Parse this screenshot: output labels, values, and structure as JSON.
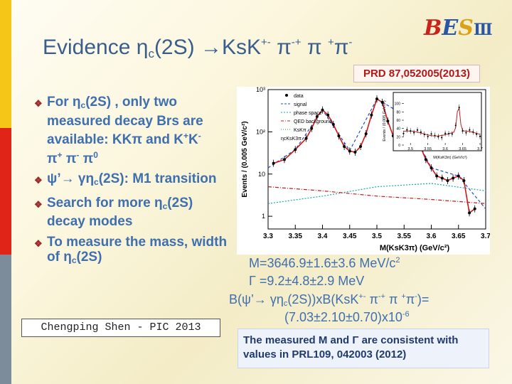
{
  "title": {
    "prefix": "Evidence ",
    "eta": "η",
    "eta_sub": "c",
    "state": "(2S) ",
    "arrow": "→",
    "ks": "KsK",
    "ks_sup": "+-",
    "pi1": " π",
    "pi1_sup": "-+",
    "pi2": " π ",
    "pi2_sup": "+",
    "pi3": "π",
    "pi3_sup": "-"
  },
  "logo": {
    "text1": "BES",
    "text2": "Ⅲ",
    "color_b": "#c8241c",
    "color_e": "#2a56a8",
    "color_s": "#d9a21a"
  },
  "reference": "PRD 87,052005(2013)",
  "bullets": [
    {
      "t1": "For ",
      "eta": "η",
      "sub": "c",
      "t2": "(2S) , only two measured decay Brs are available: KKπ and K",
      "sup1": "+",
      "t3": "K",
      "sup2": "-",
      "t4": " π",
      "sup3": "+",
      "t5": " π",
      "sup4": "-",
      "t6": " π",
      "sup5": "0"
    },
    {
      "t1": "ψ’→ γη",
      "sub": "c",
      "t2": "(2S): M1 transition"
    },
    {
      "t1": "Search for more η",
      "sub": "c",
      "t2": "(2S) decay modes"
    },
    {
      "t1": "To measure the mass, width of η",
      "sub": "c",
      "t2": "(2S)"
    }
  ],
  "bullet_marker": "❖",
  "results": {
    "mass": "M=3646.9±1.6±3.6 MeV/c",
    "mass_sup": "2",
    "gamma_sym": "Γ",
    "width": " =9.2±4.8±2.9 MeV",
    "br1": "B(ψ’→ γη",
    "br_sub": "c",
    "br2": "(2S))xB(KsK",
    "br_sup1": "+-",
    "br3": " π",
    "br_sup2": "-+",
    "br4": " π ",
    "br_sup3": "+",
    "br5": "π",
    "br_sup4": "-",
    "br6": ")=",
    "br_value": "(7.03±2.10±0.70)x10",
    "br_exp": "-6"
  },
  "footer": "Chengping Shen - PIC 2013",
  "note": {
    "line1a": "The measured M and ",
    "gamma": "Γ",
    "line1b": " are consistent with",
    "line2": "values in PRL109, 042003  (2012)"
  },
  "stripe_colors": [
    "#f5c518",
    "#e02418",
    "#7c8c9a"
  ],
  "chart_data": {
    "type": "line",
    "title": "",
    "xlabel": "M(KsK3π) (GeV/c²)",
    "ylabel": "Events / (0.005 GeV/c²)",
    "xlim": [
      3.3,
      3.7
    ],
    "ylim_log": [
      0.5,
      1000
    ],
    "x_ticks": [
      "3.3",
      "3.35",
      "3.4",
      "3.45",
      "3.5",
      "3.55",
      "3.6",
      "3.65",
      "3.7"
    ],
    "y_ticks": [
      "1",
      "10",
      "10²",
      "10³"
    ],
    "legend": [
      "data",
      "signal",
      "phase space",
      "QED background",
      "KsKπ",
      "ηcKsK3π"
    ],
    "series": [
      {
        "name": "data",
        "x": [
          3.31,
          3.33,
          3.35,
          3.37,
          3.38,
          3.39,
          3.4,
          3.41,
          3.42,
          3.43,
          3.44,
          3.45,
          3.46,
          3.47,
          3.48,
          3.49,
          3.5,
          3.51,
          3.52,
          3.53,
          3.54,
          3.55,
          3.56,
          3.57,
          3.58,
          3.59,
          3.6,
          3.61,
          3.62,
          3.63,
          3.64,
          3.65,
          3.66,
          3.67,
          3.68
        ],
        "y": [
          18,
          22,
          38,
          70,
          120,
          230,
          330,
          250,
          150,
          80,
          45,
          35,
          33,
          45,
          90,
          250,
          600,
          500,
          180,
          80,
          60,
          90,
          250,
          130,
          45,
          22,
          14,
          9,
          8,
          7,
          8,
          9,
          7,
          1.2,
          1.5
        ]
      },
      {
        "name": "signal",
        "x": [
          3.3,
          3.35,
          3.4,
          3.45,
          3.5,
          3.55,
          3.6,
          3.65,
          3.7
        ],
        "y": [
          14,
          38,
          330,
          36,
          600,
          250,
          14,
          9,
          1.5
        ]
      },
      {
        "name": "phase space",
        "x": [
          3.3,
          3.4,
          3.5,
          3.6,
          3.7
        ],
        "y": [
          2,
          3,
          5,
          6,
          4
        ]
      },
      {
        "name": "QED background",
        "x": [
          3.3,
          3.4,
          3.5,
          3.6,
          3.7
        ],
        "y": [
          5,
          4,
          3,
          2.5,
          2
        ]
      }
    ],
    "inset": {
      "ylabel": "Events / (0.005 GeV/c²)",
      "xlabel": "M(KsK3π) (GeV/c²)",
      "x_ticks": [
        "3.5",
        "3.55",
        "3.6",
        "3.65",
        "3.7"
      ],
      "y_ticks": [
        "0",
        "20",
        "40",
        "60",
        "80",
        "100"
      ],
      "ylim": [
        0,
        120
      ]
    }
  }
}
